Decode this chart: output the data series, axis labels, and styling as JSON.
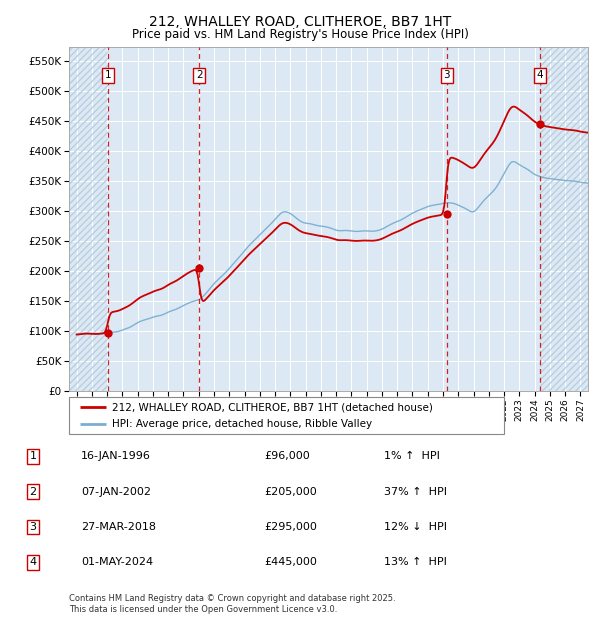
{
  "title1": "212, WHALLEY ROAD, CLITHEROE, BB7 1HT",
  "title2": "Price paid vs. HM Land Registry's House Price Index (HPI)",
  "legend_line1": "212, WHALLEY ROAD, CLITHEROE, BB7 1HT (detached house)",
  "legend_line2": "HPI: Average price, detached house, Ribble Valley",
  "footnote": "Contains HM Land Registry data © Crown copyright and database right 2025.\nThis data is licensed under the Open Government Licence v3.0.",
  "transactions": [
    {
      "num": 1,
      "date": "16-JAN-1996",
      "price": 96000,
      "pct": "1%",
      "dir": "↑",
      "year": 1996.04
    },
    {
      "num": 2,
      "date": "07-JAN-2002",
      "price": 205000,
      "pct": "37%",
      "dir": "↑",
      "year": 2002.03
    },
    {
      "num": 3,
      "date": "27-MAR-2018",
      "price": 295000,
      "pct": "12%",
      "dir": "↓",
      "year": 2018.24
    },
    {
      "num": 4,
      "date": "01-MAY-2024",
      "price": 445000,
      "pct": "13%",
      "dir": "↑",
      "year": 2024.33
    }
  ],
  "xlim": [
    1993.5,
    2027.5
  ],
  "ylim": [
    0,
    575000
  ],
  "yticks": [
    0,
    50000,
    100000,
    150000,
    200000,
    250000,
    300000,
    350000,
    400000,
    450000,
    500000,
    550000
  ],
  "ytick_labels": [
    "£0",
    "£50K",
    "£100K",
    "£150K",
    "£200K",
    "£250K",
    "£300K",
    "£350K",
    "£400K",
    "£450K",
    "£500K",
    "£550K"
  ],
  "bg_color": "#dce9f5",
  "hatch_color": "#b8cfe0",
  "grid_color": "#ffffff",
  "red_line_color": "#cc0000",
  "blue_line_color": "#7aaed0",
  "dot_color": "#cc0000",
  "vline_color": "#cc0000",
  "trans_years": [
    1996.04,
    2002.03,
    2018.24,
    2024.33
  ],
  "trans_prices": [
    96000,
    205000,
    295000,
    445000
  ],
  "x_start": 1994.0,
  "x_end": 2027.5
}
